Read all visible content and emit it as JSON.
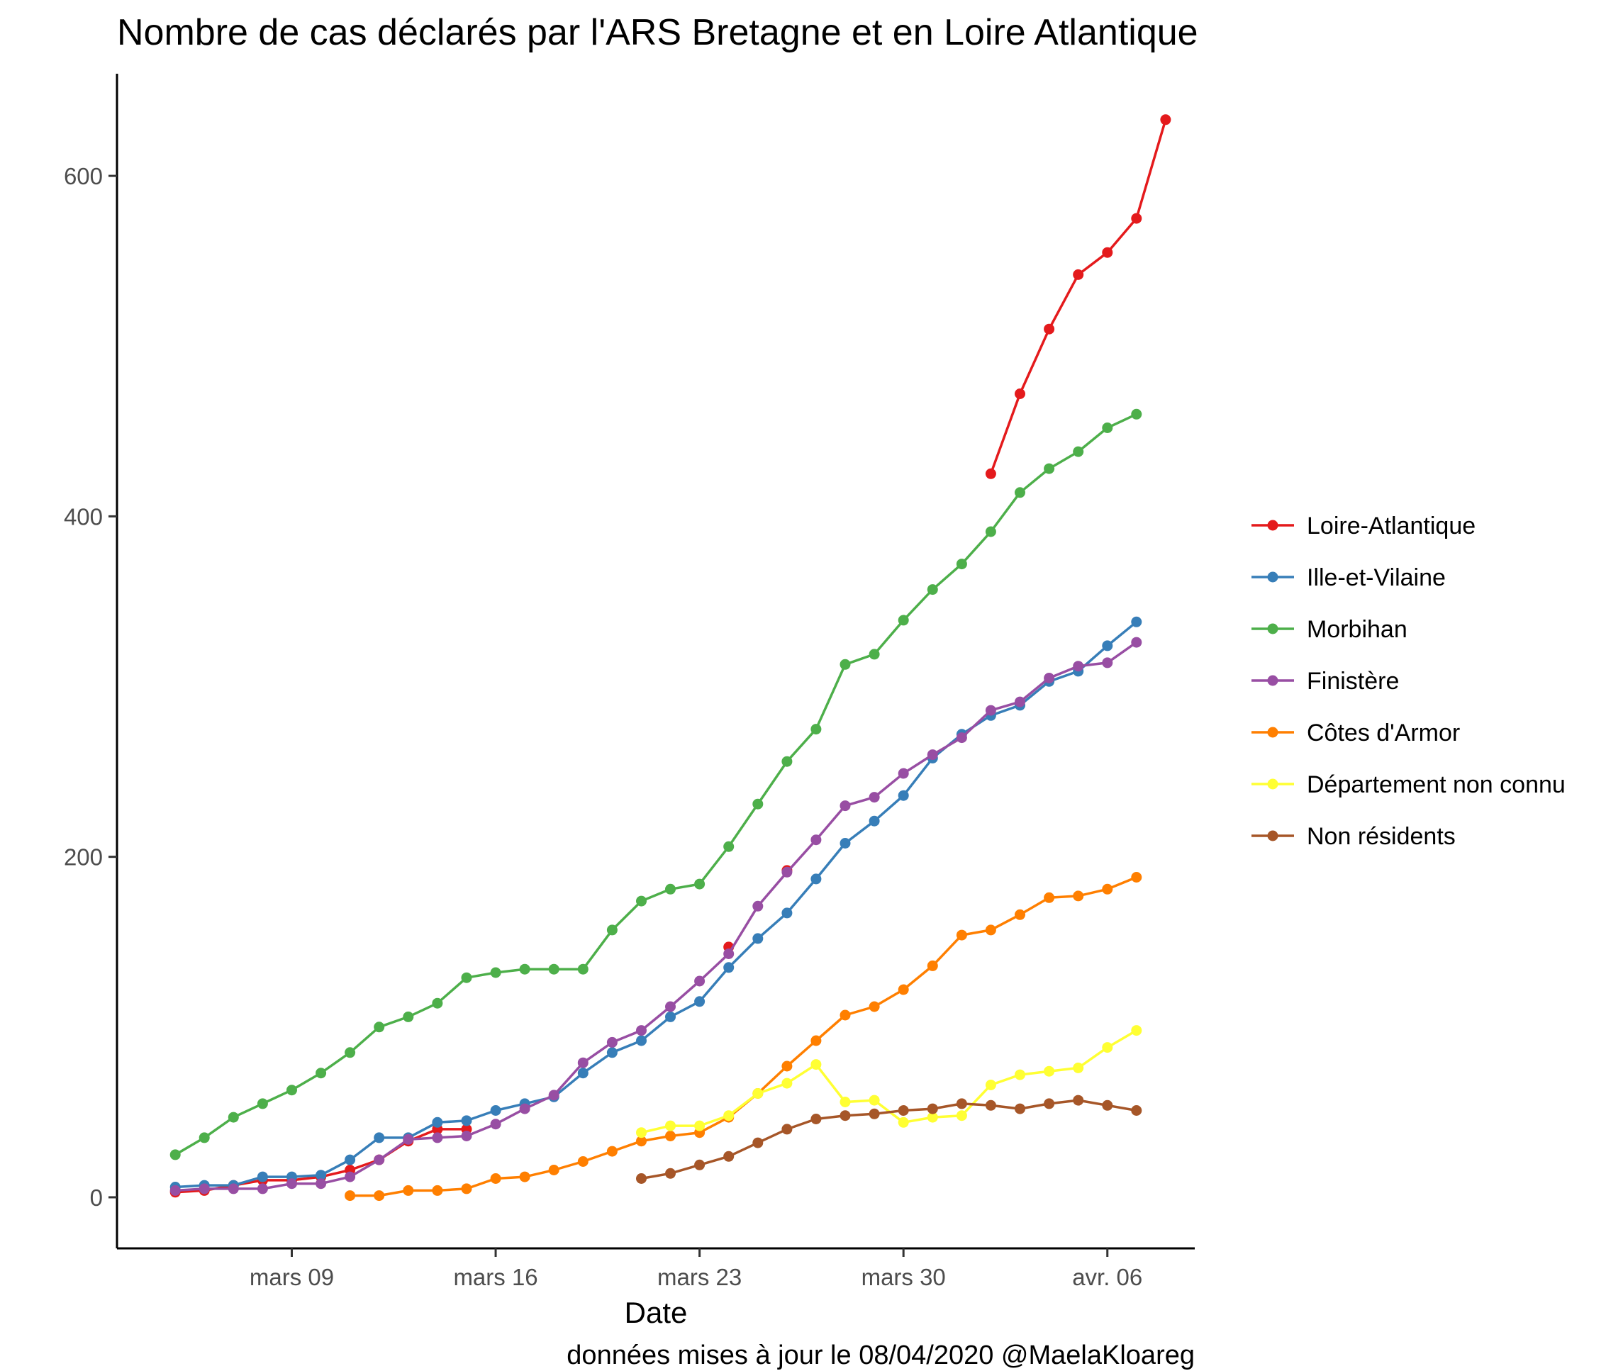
{
  "chart_data": {
    "type": "line",
    "title": "Nombre de cas déclarés par l'ARS Bretagne et en Loire Atlantique",
    "xlabel": "Date",
    "ylabel": "",
    "caption": "données mises à jour le 08/04/2020 @MaelaKloareg",
    "x_start": "2020-03-04",
    "x_ticks": [
      {
        "date": "2020-03-09",
        "label": "mars 09"
      },
      {
        "date": "2020-03-16",
        "label": "mars 16"
      },
      {
        "date": "2020-03-23",
        "label": "mars 23"
      },
      {
        "date": "2020-03-30",
        "label": "mars 30"
      },
      {
        "date": "2020-04-06",
        "label": "avr. 06"
      }
    ],
    "xlim": [
      "2020-03-03",
      "2020-04-09"
    ],
    "y_ticks": [
      0,
      200,
      400,
      600
    ],
    "ylim": [
      -30,
      660
    ],
    "grid": false,
    "legend_position": "right",
    "series": [
      {
        "name": "Loire-Atlantique",
        "color": "#E41A1C",
        "points": [
          [
            "2020-03-05",
            3
          ],
          [
            "2020-03-06",
            4
          ],
          [
            "2020-03-07",
            7
          ],
          [
            "2020-03-08",
            10
          ],
          [
            "2020-03-09",
            10
          ],
          [
            "2020-03-10",
            12
          ],
          [
            "2020-03-11",
            16
          ],
          [
            "2020-03-12",
            22
          ],
          [
            "2020-03-13",
            33
          ],
          [
            "2020-03-14",
            40
          ],
          [
            "2020-03-15",
            40
          ],
          null,
          [
            "2020-03-24",
            147
          ],
          null,
          [
            "2020-03-26",
            192
          ],
          null,
          [
            "2020-04-02",
            425
          ],
          [
            "2020-04-03",
            472
          ],
          [
            "2020-04-04",
            510
          ],
          [
            "2020-04-05",
            542
          ],
          [
            "2020-04-06",
            555
          ],
          [
            "2020-04-07",
            575
          ],
          [
            "2020-04-08",
            633
          ]
        ]
      },
      {
        "name": "Ille-et-Vilaine",
        "color": "#377EB8",
        "points": [
          [
            "2020-03-05",
            6
          ],
          [
            "2020-03-06",
            7
          ],
          [
            "2020-03-07",
            7
          ],
          [
            "2020-03-08",
            12
          ],
          [
            "2020-03-09",
            12
          ],
          [
            "2020-03-10",
            13
          ],
          [
            "2020-03-11",
            22
          ],
          [
            "2020-03-12",
            35
          ],
          [
            "2020-03-13",
            35
          ],
          [
            "2020-03-14",
            44
          ],
          [
            "2020-03-15",
            45
          ],
          [
            "2020-03-16",
            51
          ],
          [
            "2020-03-17",
            55
          ],
          [
            "2020-03-18",
            59
          ],
          [
            "2020-03-19",
            73
          ],
          [
            "2020-03-20",
            85
          ],
          [
            "2020-03-21",
            92
          ],
          [
            "2020-03-22",
            106
          ],
          [
            "2020-03-23",
            115
          ],
          [
            "2020-03-24",
            135
          ],
          [
            "2020-03-25",
            152
          ],
          [
            "2020-03-26",
            167
          ],
          [
            "2020-03-27",
            187
          ],
          [
            "2020-03-28",
            208
          ],
          [
            "2020-03-29",
            221
          ],
          [
            "2020-03-30",
            236
          ],
          [
            "2020-03-31",
            258
          ],
          [
            "2020-04-01",
            272
          ],
          [
            "2020-04-02",
            283
          ],
          [
            "2020-04-03",
            289
          ],
          [
            "2020-04-04",
            303
          ],
          [
            "2020-04-05",
            309
          ],
          [
            "2020-04-06",
            324
          ],
          [
            "2020-04-07",
            338
          ]
        ]
      },
      {
        "name": "Morbihan",
        "color": "#4DAF4A",
        "points": [
          [
            "2020-03-05",
            25
          ],
          [
            "2020-03-06",
            35
          ],
          [
            "2020-03-07",
            47
          ],
          [
            "2020-03-08",
            55
          ],
          [
            "2020-03-09",
            63
          ],
          [
            "2020-03-10",
            73
          ],
          [
            "2020-03-11",
            85
          ],
          [
            "2020-03-12",
            100
          ],
          [
            "2020-03-13",
            106
          ],
          [
            "2020-03-14",
            114
          ],
          [
            "2020-03-15",
            129
          ],
          [
            "2020-03-16",
            132
          ],
          [
            "2020-03-17",
            134
          ],
          [
            "2020-03-18",
            134
          ],
          [
            "2020-03-19",
            134
          ],
          [
            "2020-03-20",
            157
          ],
          [
            "2020-03-21",
            174
          ],
          [
            "2020-03-22",
            181
          ],
          [
            "2020-03-23",
            184
          ],
          [
            "2020-03-24",
            206
          ],
          [
            "2020-03-25",
            231
          ],
          [
            "2020-03-26",
            256
          ],
          [
            "2020-03-27",
            275
          ],
          [
            "2020-03-28",
            313
          ],
          [
            "2020-03-29",
            319
          ],
          [
            "2020-03-30",
            339
          ],
          [
            "2020-03-31",
            357
          ],
          [
            "2020-04-01",
            372
          ],
          [
            "2020-04-02",
            391
          ],
          [
            "2020-04-03",
            414
          ],
          [
            "2020-04-04",
            428
          ],
          [
            "2020-04-05",
            438
          ],
          [
            "2020-04-06",
            452
          ],
          [
            "2020-04-07",
            460
          ]
        ]
      },
      {
        "name": "Finistère",
        "color": "#984EA3",
        "points": [
          [
            "2020-03-05",
            4
          ],
          [
            "2020-03-06",
            5
          ],
          [
            "2020-03-07",
            5
          ],
          [
            "2020-03-08",
            5
          ],
          [
            "2020-03-09",
            8
          ],
          [
            "2020-03-10",
            8
          ],
          [
            "2020-03-11",
            12
          ],
          [
            "2020-03-12",
            22
          ],
          [
            "2020-03-13",
            34
          ],
          [
            "2020-03-14",
            35
          ],
          [
            "2020-03-15",
            36
          ],
          [
            "2020-03-16",
            43
          ],
          [
            "2020-03-17",
            52
          ],
          [
            "2020-03-18",
            60
          ],
          [
            "2020-03-19",
            79
          ],
          [
            "2020-03-20",
            91
          ],
          [
            "2020-03-21",
            98
          ],
          [
            "2020-03-22",
            112
          ],
          [
            "2020-03-23",
            127
          ],
          [
            "2020-03-24",
            143
          ],
          [
            "2020-03-25",
            171
          ],
          [
            "2020-03-26",
            191
          ],
          [
            "2020-03-27",
            210
          ],
          [
            "2020-03-28",
            230
          ],
          [
            "2020-03-29",
            235
          ],
          [
            "2020-03-30",
            249
          ],
          [
            "2020-03-31",
            260
          ],
          [
            "2020-04-01",
            270
          ],
          [
            "2020-04-02",
            286
          ],
          [
            "2020-04-03",
            291
          ],
          [
            "2020-04-04",
            305
          ],
          [
            "2020-04-05",
            312
          ],
          [
            "2020-04-06",
            314
          ],
          [
            "2020-04-07",
            326
          ]
        ]
      },
      {
        "name": "Côtes d'Armor",
        "color": "#FF7F00",
        "points": [
          [
            "2020-03-11",
            1
          ],
          [
            "2020-03-12",
            1
          ],
          [
            "2020-03-13",
            4
          ],
          [
            "2020-03-14",
            4
          ],
          [
            "2020-03-15",
            5
          ],
          [
            "2020-03-16",
            11
          ],
          [
            "2020-03-17",
            12
          ],
          [
            "2020-03-18",
            16
          ],
          [
            "2020-03-19",
            21
          ],
          [
            "2020-03-20",
            27
          ],
          [
            "2020-03-21",
            33
          ],
          [
            "2020-03-22",
            36
          ],
          [
            "2020-03-23",
            38
          ],
          [
            "2020-03-24",
            47
          ],
          [
            "2020-03-25",
            61
          ],
          [
            "2020-03-26",
            77
          ],
          [
            "2020-03-27",
            92
          ],
          [
            "2020-03-28",
            107
          ],
          [
            "2020-03-29",
            112
          ],
          [
            "2020-03-30",
            122
          ],
          [
            "2020-03-31",
            136
          ],
          [
            "2020-04-01",
            154
          ],
          [
            "2020-04-02",
            157
          ],
          [
            "2020-04-03",
            166
          ],
          [
            "2020-04-04",
            176
          ],
          [
            "2020-04-05",
            177
          ],
          [
            "2020-04-06",
            181
          ],
          [
            "2020-04-07",
            188
          ]
        ]
      },
      {
        "name": "Département non connu",
        "color": "#FFFF33",
        "points": [
          [
            "2020-03-21",
            38
          ],
          [
            "2020-03-22",
            42
          ],
          [
            "2020-03-23",
            42
          ],
          [
            "2020-03-24",
            48
          ],
          [
            "2020-03-25",
            61
          ],
          [
            "2020-03-26",
            67
          ],
          [
            "2020-03-27",
            78
          ],
          [
            "2020-03-28",
            56
          ],
          [
            "2020-03-29",
            57
          ],
          [
            "2020-03-30",
            44
          ],
          [
            "2020-03-31",
            47
          ],
          [
            "2020-04-01",
            48
          ],
          [
            "2020-04-02",
            66
          ],
          [
            "2020-04-03",
            72
          ],
          [
            "2020-04-04",
            74
          ],
          [
            "2020-04-05",
            76
          ],
          [
            "2020-04-06",
            88
          ],
          [
            "2020-04-07",
            98
          ]
        ]
      },
      {
        "name": "Non résidents",
        "color": "#A65628",
        "points": [
          [
            "2020-03-21",
            11
          ],
          [
            "2020-03-22",
            14
          ],
          [
            "2020-03-23",
            19
          ],
          [
            "2020-03-24",
            24
          ],
          [
            "2020-03-25",
            32
          ],
          [
            "2020-03-26",
            40
          ],
          [
            "2020-03-27",
            46
          ],
          [
            "2020-03-28",
            48
          ],
          [
            "2020-03-29",
            49
          ],
          [
            "2020-03-30",
            51
          ],
          [
            "2020-03-31",
            52
          ],
          [
            "2020-04-01",
            55
          ],
          [
            "2020-04-02",
            54
          ],
          [
            "2020-04-03",
            52
          ],
          [
            "2020-04-04",
            55
          ],
          [
            "2020-04-05",
            57
          ],
          [
            "2020-04-06",
            54
          ],
          [
            "2020-04-07",
            51
          ]
        ]
      }
    ]
  }
}
